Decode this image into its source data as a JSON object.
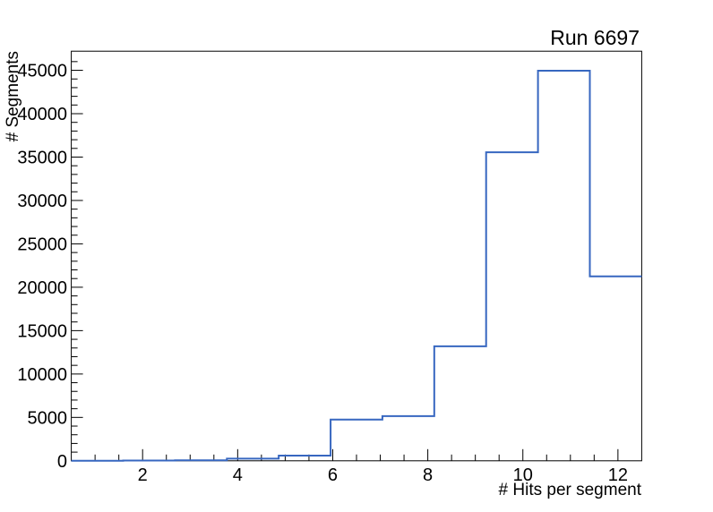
{
  "window": {
    "background": "#ffffff"
  },
  "chart_data": {
    "type": "line",
    "subtype": "histogram-step",
    "title": "Run 6697",
    "xlabel": "# Hits per segment",
    "ylabel": "# Segments",
    "bin_edges": [
      0.5,
      1.591,
      2.682,
      3.773,
      4.864,
      5.955,
      7.045,
      8.136,
      9.227,
      10.318,
      11.409,
      12.5
    ],
    "counts": [
      10,
      25,
      60,
      250,
      600,
      4750,
      5150,
      13200,
      35550,
      44950,
      21250
    ],
    "xlim": [
      0.5,
      12.5
    ],
    "ylim": [
      0,
      47200
    ],
    "x_major_ticks": [
      2,
      4,
      6,
      8,
      10,
      12
    ],
    "x_major_tick_labels": [
      "2",
      "4",
      "6",
      "8",
      "10",
      "12"
    ],
    "x_minor_step": 0.5,
    "y_major_ticks": [
      0,
      5000,
      10000,
      15000,
      20000,
      25000,
      30000,
      35000,
      40000,
      45000
    ],
    "y_major_tick_labels": [
      "0",
      "5000",
      "10000",
      "15000",
      "20000",
      "25000",
      "30000",
      "35000",
      "40000",
      "45000"
    ],
    "y_minor_step": 1000,
    "grid": false,
    "legend": null,
    "line_color": "#3767c0",
    "frame_color": "#000000",
    "text_color": "#000000"
  }
}
